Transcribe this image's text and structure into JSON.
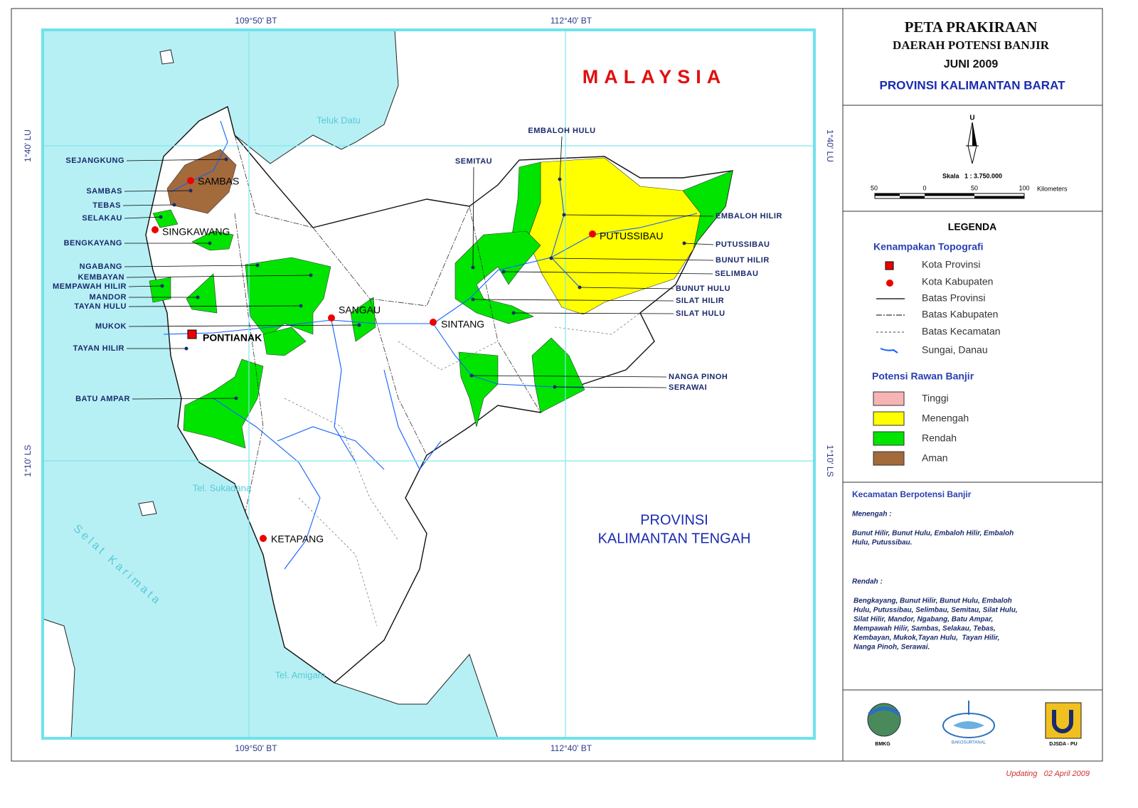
{
  "map": {
    "grid_labels": {
      "top": [
        "109°50' BT",
        "112°40' BT"
      ],
      "bottom": [
        "109°50' BT",
        "112°40' BT"
      ],
      "left": [
        "1°40' LU",
        "1°10' LS"
      ],
      "right": [
        "1°40' LU",
        "1°10' LS"
      ]
    },
    "country": "MALAYSIA",
    "neighbor_province": [
      "PROVINSI",
      "KALIMANTAN TENGAH"
    ],
    "waters": [
      "Teluk Datu",
      "Tel. Sukadana",
      "Selat Karimata",
      "Tel. Amigam"
    ],
    "cities": [
      "SAMBAS",
      "SINGKAWANG",
      "PONTIANAK",
      "SANGAU",
      "SINTANG",
      "PUTUSSIBAU",
      "KETAPANG"
    ],
    "districts": [
      "SEJANGKUNG",
      "SAMBAS",
      "TEBAS",
      "SELAKAU",
      "BENGKAYANG",
      "NGABANG",
      "KEMBAYAN",
      "MEMPAWAH HILIR",
      "MANDOR",
      "TAYAN HULU",
      "MUKOK",
      "TAYAN HILIR",
      "BATU AMPAR",
      "SEMITAU",
      "EMBALOH HULU",
      "EMBALOH HILIR",
      "PUTUSSIBAU",
      "BUNUT HILIR",
      "SELIMBAU",
      "BUNUT HULU",
      "SILAT HILIR",
      "SILAT HULU",
      "NANGA PINOH",
      "SERAWAI"
    ]
  },
  "header": {
    "title": "PETA PRAKIRAAN",
    "subtitle": "DAERAH POTENSI BANJIR",
    "period": "JUNI 2009",
    "province": "PROVINSI KALIMANTAN BARAT"
  },
  "scale": {
    "north": "U",
    "label": "Skala   1 : 3.750.000",
    "ticks": [
      "50",
      "0",
      "50",
      "100"
    ],
    "unit": "Kilometers"
  },
  "legend": {
    "title": "LEGENDA",
    "topo_title": "Kenampakan Topografi",
    "topo_items": [
      "Kota Provinsi",
      "Kota Kabupaten",
      "Batas Provinsi",
      "Batas Kabupaten",
      "Batas Kecamatan",
      "Sungai, Danau"
    ],
    "flood_title": "Potensi Rawan Banjir",
    "flood_classes": [
      {
        "name": "Tinggi",
        "color": "#f8b4b4"
      },
      {
        "name": "Menengah",
        "color": "#ffff00"
      },
      {
        "name": "Rendah",
        "color": "#00e400"
      },
      {
        "name": "Aman",
        "color": "#a36a3c"
      }
    ]
  },
  "districts_note": {
    "title": "Kecamatan Berpotensi Banjir",
    "menengah_label": "Menengah :",
    "menengah_lines": [
      "Bunut Hilir, Bunut Hulu, Embaloh Hilir, Embaloh",
      "Hulu, Putussibau."
    ],
    "rendah_label": "Rendah :",
    "rendah_lines": [
      "Bengkayang, Bunut Hilir, Bunut Hulu, Embaloh",
      "Hulu, Putussibau, Selimbau, Semitau, Silat Hulu,",
      "Silat Hilir, Mandor, Ngabang, Batu Ampar,",
      "Mempawah Hilir, Sambas, Selakau, Tebas,",
      "Kembayan, Mukok,Tayan Hulu,  Tayan Hilir,",
      "Nanga Pinoh, Serawai."
    ]
  },
  "logos": [
    "BMKG",
    "BAKOSURTANAL",
    "DJSDA - PU"
  ],
  "footer": "Updating   02 April 2009"
}
